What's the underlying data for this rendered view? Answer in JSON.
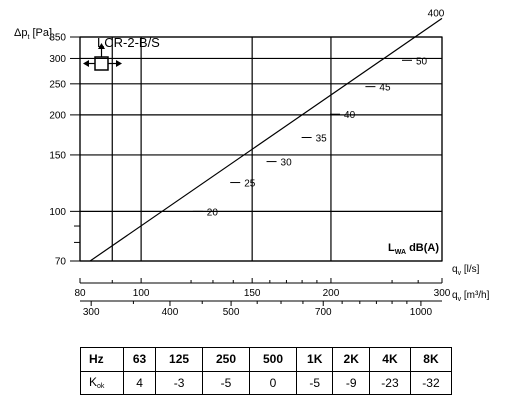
{
  "chart_data": {
    "type": "line",
    "title": "LCR-2-B/S",
    "ylabel_parts": {
      "main": "Δp",
      "sub": "t",
      "unit": " [Pa]"
    },
    "x_axis_ls": {
      "label_main": "q",
      "label_sub": "v",
      "label_unit": " [l/s]",
      "range": [
        80,
        300
      ],
      "ticks": [
        80,
        100,
        150,
        200,
        300
      ],
      "minor": [
        90,
        120,
        130,
        140,
        160,
        170,
        180,
        190,
        250,
        275
      ]
    },
    "x_axis_m3h": {
      "label_main": "q",
      "label_sub": "v",
      "label_unit": " [m³/h]",
      "ticks": [
        300,
        400,
        500,
        700,
        1000
      ],
      "minor": [
        350,
        450,
        550,
        600,
        650,
        750,
        800,
        850,
        900,
        950
      ]
    },
    "y_axis": {
      "range": [
        70,
        350
      ],
      "scale": "log",
      "ticks": [
        70,
        100,
        150,
        200,
        250,
        300,
        350
      ],
      "minor": [
        80,
        90
      ]
    },
    "series": [
      {
        "x": [
          83,
          300
        ],
        "y": [
          70,
          400
        ],
        "end_label": "400"
      }
    ],
    "sound_marks": [
      {
        "label": "20",
        "x": 123,
        "y": 100
      },
      {
        "label": "25",
        "x": 141,
        "y": 123
      },
      {
        "label": "30",
        "x": 161,
        "y": 143
      },
      {
        "label": "35",
        "x": 183,
        "y": 170
      },
      {
        "label": "40",
        "x": 203,
        "y": 201
      },
      {
        "label": "45",
        "x": 231,
        "y": 245
      },
      {
        "label": "50",
        "x": 264,
        "y": 296
      }
    ],
    "sound_legend": {
      "main": "L",
      "sub": "WA",
      "unit": " dB(A)"
    },
    "grid": true
  },
  "table": {
    "hz_label": "Hz",
    "hz": [
      "63",
      "125",
      "250",
      "500",
      "1K",
      "2K",
      "4K",
      "8K"
    ],
    "k_label_main": "K",
    "k_label_sub": "ok",
    "k": [
      "4",
      "-3",
      "-5",
      "0",
      "-5",
      "-9",
      "-23",
      "-32"
    ]
  }
}
